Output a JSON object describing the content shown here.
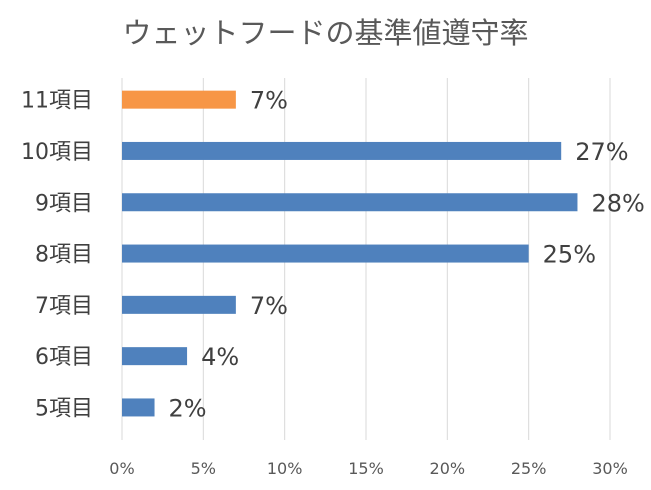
{
  "chart_data": {
    "type": "bar",
    "orientation": "horizontal",
    "title": "ウェットフードの基準値遵守率",
    "categories": [
      "11項目",
      "10項目",
      "9項目",
      "8項目",
      "7項目",
      "6項目",
      "5項目"
    ],
    "values": [
      7,
      27,
      28,
      25,
      7,
      4,
      2
    ],
    "data_labels": [
      "7%",
      "27%",
      "28%",
      "25%",
      "7%",
      "4%",
      "2%"
    ],
    "bar_colors": [
      "#F79646",
      "#4F81BD",
      "#4F81BD",
      "#4F81BD",
      "#4F81BD",
      "#4F81BD",
      "#4F81BD"
    ],
    "xlim": [
      0,
      30
    ],
    "x_ticks": [
      0,
      5,
      10,
      15,
      20,
      25,
      30
    ],
    "x_tick_labels": [
      "0%",
      "5%",
      "10%",
      "15%",
      "20%",
      "25%",
      "30%"
    ],
    "grid": "vertical",
    "legend": "none",
    "xlabel": "",
    "ylabel": ""
  }
}
